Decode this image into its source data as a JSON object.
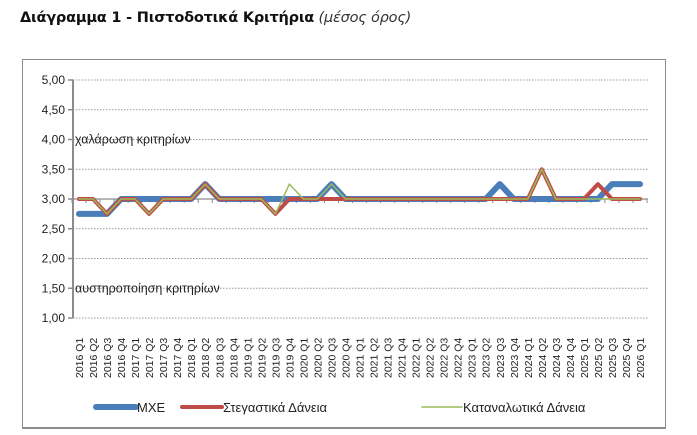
{
  "title": {
    "main": "Διάγραμμα 1 - Πιστοδοτικά Κριτήρια",
    "sub": "(μέσος όρος)"
  },
  "chart_data": {
    "type": "line",
    "title": "Διάγραμμα 1 - Πιστοδοτικά Κριτήρια (μέσος όρος)",
    "xlabel": "",
    "ylabel": "",
    "ylim": [
      1.0,
      5.0
    ],
    "yticks": [
      "5,00",
      "4,50",
      "4,00",
      "3,50",
      "3,00",
      "2,50",
      "2,00",
      "1,50",
      "1,00"
    ],
    "grid": "horizontal dotted",
    "legend_position": "bottom",
    "annotations": [
      {
        "text": "χαλάρωση κριτηρίων",
        "y": 4.0
      },
      {
        "text": "αυστηροποίηση κριτηρίων",
        "y": 1.5
      }
    ],
    "categories": [
      "2016 Q1",
      "2016 Q2",
      "2016 Q3",
      "2016 Q4",
      "2017 Q1",
      "2017 Q2",
      "2017 Q3",
      "2017 Q4",
      "2018 Q1",
      "2018 Q2",
      "2018 Q3",
      "2018 Q4",
      "2019 Q1",
      "2019 Q2",
      "2019 Q3",
      "2019 Q4",
      "2020 Q1",
      "2020 Q2",
      "2020 Q3",
      "2020 Q4",
      "2021 Q1",
      "2021 Q2",
      "2021 Q3",
      "2021 Q4",
      "2022 Q1",
      "2022 Q2",
      "2022 Q3",
      "2022 Q4",
      "2023 Q1",
      "2023 Q2",
      "2023 Q3",
      "2023 Q4",
      "2024 Q1",
      "2024 Q2",
      "2024 Q3",
      "2024 Q4",
      "2025 Q1",
      "2025 Q2",
      "2025 Q3",
      "2025 Q4",
      "2026 Q1"
    ],
    "series": [
      {
        "name": "ΜΧΕ",
        "color": "#4a7ebb",
        "width": 6,
        "values": [
          2.75,
          2.75,
          2.75,
          3.0,
          3.0,
          3.0,
          3.0,
          3.0,
          3.0,
          3.25,
          3.0,
          3.0,
          3.0,
          3.0,
          3.0,
          3.0,
          3.0,
          3.0,
          3.25,
          3.0,
          3.0,
          3.0,
          3.0,
          3.0,
          3.0,
          3.0,
          3.0,
          3.0,
          3.0,
          3.0,
          3.25,
          3.0,
          3.0,
          3.0,
          3.0,
          3.0,
          3.0,
          3.0,
          3.25,
          3.25,
          3.25
        ]
      },
      {
        "name": "Στεγαστικά Δάνεια",
        "color": "#be4b48",
        "width": 4,
        "values": [
          3.0,
          3.0,
          2.75,
          3.0,
          3.0,
          2.75,
          3.0,
          3.0,
          3.0,
          3.25,
          3.0,
          3.0,
          3.0,
          3.0,
          2.75,
          3.0,
          3.0,
          3.0,
          3.0,
          3.0,
          3.0,
          3.0,
          3.0,
          3.0,
          3.0,
          3.0,
          3.0,
          3.0,
          3.0,
          3.0,
          3.0,
          3.0,
          3.0,
          3.5,
          3.0,
          3.0,
          3.0,
          3.25,
          3.0,
          3.0,
          3.0
        ]
      },
      {
        "name": "Καταναλωτικά Δάνεια",
        "color": "#9bbb59",
        "width": 1.5,
        "values": [
          3.0,
          3.0,
          2.75,
          3.0,
          3.0,
          2.75,
          3.0,
          3.0,
          3.0,
          3.25,
          3.0,
          3.0,
          3.0,
          3.0,
          2.75,
          3.25,
          3.0,
          3.0,
          3.25,
          3.0,
          3.0,
          3.0,
          3.0,
          3.0,
          3.0,
          3.0,
          3.0,
          3.0,
          3.0,
          3.0,
          3.0,
          3.0,
          3.0,
          3.5,
          3.0,
          3.0,
          3.0,
          3.0,
          3.0,
          3.0,
          3.0
        ]
      }
    ]
  }
}
